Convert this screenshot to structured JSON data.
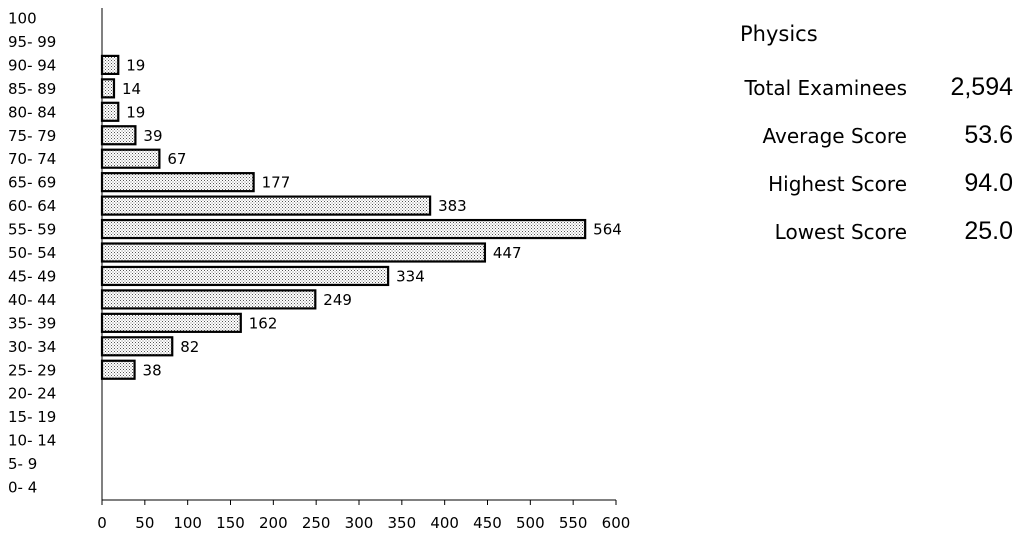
{
  "chart_data": {
    "type": "bar",
    "orientation": "horizontal",
    "categories": [
      "100",
      "95- 99",
      "90- 94",
      "85- 89",
      "80- 84",
      "75- 79",
      "70- 74",
      "65- 69",
      "60- 64",
      "55- 59",
      "50- 54",
      "45- 49",
      "40- 44",
      "35- 39",
      "30- 34",
      "25- 29",
      "20- 24",
      "15- 19",
      "10- 14",
      "5- 9",
      "0- 4"
    ],
    "values": [
      0,
      0,
      19,
      14,
      19,
      39,
      67,
      177,
      383,
      564,
      447,
      334,
      249,
      162,
      82,
      38,
      0,
      0,
      0,
      0,
      0
    ],
    "data_labels": [
      "",
      "",
      "19",
      "14",
      "19",
      "39",
      "67",
      "177",
      "383",
      "564",
      "447",
      "334",
      "249",
      "162",
      "82",
      "38",
      "",
      "",
      "",
      "",
      ""
    ],
    "xlim": [
      0,
      600
    ],
    "xticks": [
      "0",
      "50",
      "100",
      "150",
      "200",
      "250",
      "300",
      "350",
      "400",
      "450",
      "500",
      "550",
      "600"
    ],
    "title": "",
    "xlabel": "",
    "ylabel": "",
    "grid": false,
    "bar_fill": "dotted pattern",
    "bar_color": "#000000"
  },
  "stats": {
    "subject": "Physics",
    "rows": [
      {
        "label": "Total Examinees",
        "value": "2,594"
      },
      {
        "label": "Average Score",
        "value": "53.6"
      },
      {
        "label": "Highest Score",
        "value": "94.0"
      },
      {
        "label": "Lowest Score",
        "value": "25.0"
      }
    ]
  }
}
